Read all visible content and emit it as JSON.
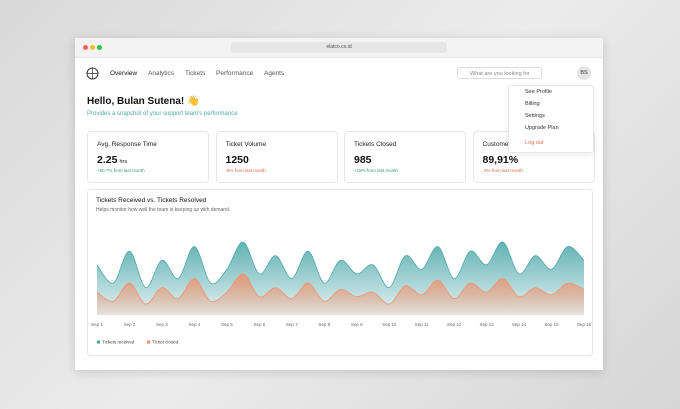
{
  "browser": {
    "url": "elatco.co.id"
  },
  "nav": {
    "items": [
      "Overview",
      "Analytics",
      "Tickets",
      "Performance",
      "Agents"
    ],
    "search_placeholder": "What are you looking for",
    "avatar": "BS"
  },
  "menu": {
    "items": [
      "See Profile",
      "Billing",
      "Settings",
      "Upgrade Plan"
    ],
    "logout": "Log out"
  },
  "header": {
    "title": "Hello, Bulan Sutena! 👋",
    "subtitle": "Provides a snapshot of your support team's performance."
  },
  "cards": [
    {
      "title": "Avg. Response Time",
      "value": "2.25",
      "unit": "hrs",
      "change": "+80.7% from last month",
      "trend": "up"
    },
    {
      "title": "Ticket Volume",
      "value": "1250",
      "change": "-5% from last month",
      "trend": "down"
    },
    {
      "title": "Tickets Closed",
      "value": "985",
      "change": "+18% from last month",
      "trend": "up"
    },
    {
      "title": "Customer Satisfaction",
      "value": "89,91%",
      "change": "-2% from last month",
      "trend": "down"
    }
  ],
  "chart_data": {
    "type": "area",
    "title": "Tickets Received vs. Tickets Resolved",
    "subtitle": "Helps monitor how well the team is keeping up with demand.",
    "categories": [
      "Sep 1",
      null,
      "Sep 2",
      null,
      "Sep 3",
      null,
      "Sep 4",
      null,
      "Sep 5",
      null,
      "Sep 6",
      null,
      "Sep 7",
      null,
      "Sep 8",
      null,
      "Sep 9",
      null,
      "Sep 10",
      null,
      "Sep 11",
      null,
      "Sep 12",
      null,
      "Sep 13",
      null,
      "Sep 14",
      null,
      "Sep 15",
      null,
      "Sep 16"
    ],
    "series": [
      {
        "name": "Tickets received",
        "color": "#4fa8aa",
        "values": [
          55,
          35,
          70,
          30,
          60,
          40,
          75,
          35,
          50,
          80,
          45,
          65,
          40,
          70,
          35,
          60,
          45,
          55,
          30,
          65,
          50,
          75,
          40,
          70,
          55,
          80,
          45,
          65,
          50,
          75,
          60
        ]
      },
      {
        "name": "Ticket closed",
        "color": "#f2936f",
        "values": [
          25,
          15,
          35,
          12,
          30,
          18,
          40,
          15,
          25,
          45,
          20,
          30,
          18,
          35,
          15,
          28,
          20,
          25,
          12,
          32,
          22,
          38,
          18,
          35,
          25,
          40,
          20,
          30,
          22,
          35,
          28
        ]
      }
    ]
  }
}
